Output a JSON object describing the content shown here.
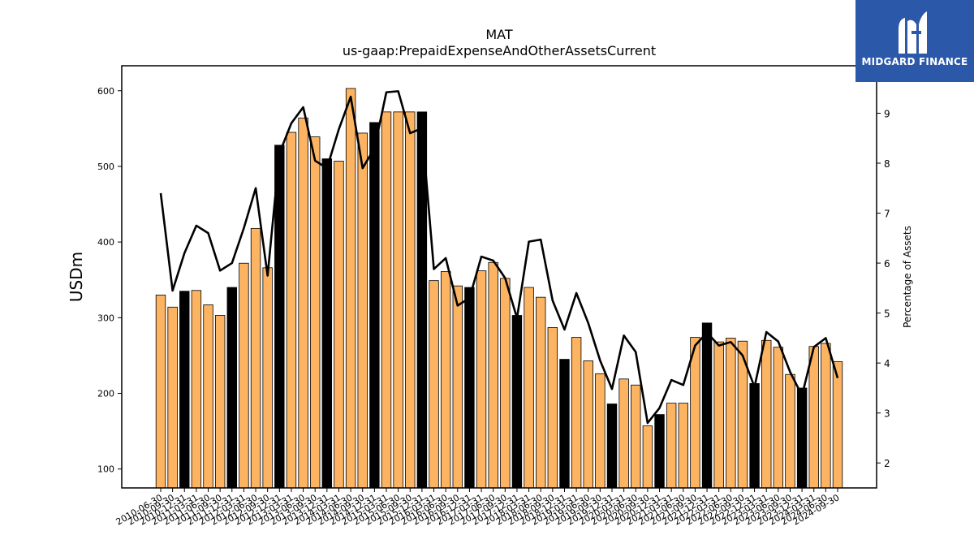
{
  "chart_data": {
    "type": "bar",
    "title": "MAT",
    "subtitle": "us-gaap:PrepaidExpenseAndOtherAssetsCurrent",
    "ylabel": "USDm",
    "y2label": "Percentage of Assets",
    "ylim": [
      75,
      633
    ],
    "y2lim": [
      1.5,
      9.95
    ],
    "yticks": [
      100,
      200,
      300,
      400,
      500,
      600
    ],
    "y2ticks": [
      2,
      3,
      4,
      5,
      6,
      7,
      8,
      9
    ],
    "bar_color": "#fdb462",
    "highlight_color": "#000000",
    "line_color": "#000000",
    "categories": [
      "2010-06-30",
      "2010-09-30",
      "2010-12-31",
      "2011-03-31",
      "2011-06-30",
      "2011-09-30",
      "2011-12-31",
      "2012-03-31",
      "2012-06-30",
      "2012-09-30",
      "2012-12-31",
      "2013-03-31",
      "2013-06-30",
      "2013-09-30",
      "2013-12-31",
      "2014-03-31",
      "2014-06-30",
      "2014-09-30",
      "2014-12-31",
      "2015-03-31",
      "2015-06-30",
      "2015-09-30",
      "2015-12-31",
      "2016-03-31",
      "2016-06-30",
      "2016-09-30",
      "2016-12-31",
      "2017-03-31",
      "2017-06-30",
      "2017-09-30",
      "2017-12-31",
      "2018-03-31",
      "2018-06-30",
      "2018-09-30",
      "2018-12-31",
      "2019-03-31",
      "2019-06-30",
      "2019-09-30",
      "2019-12-31",
      "2020-03-31",
      "2020-06-30",
      "2020-09-30",
      "2020-12-31",
      "2021-03-31",
      "2021-06-30",
      "2021-09-30",
      "2021-12-31",
      "2022-03-31",
      "2022-06-30",
      "2022-09-30",
      "2022-12-31",
      "2023-03-31",
      "2023-06-30",
      "2023-09-30",
      "2023-12-31",
      "2024-03-31",
      "2024-06-30",
      "2024-09-30"
    ],
    "series": [
      {
        "type": "bar",
        "values": [
          330,
          314,
          335,
          336,
          317,
          303,
          340,
          372,
          418,
          366,
          528,
          545,
          564,
          539,
          510,
          507,
          603,
          544,
          558,
          572,
          572,
          572,
          572,
          349,
          361,
          342,
          340,
          362,
          373,
          352,
          303,
          340,
          327,
          287,
          245,
          274,
          243,
          226,
          186,
          219,
          211,
          157,
          172,
          187,
          187,
          274,
          293,
          268,
          273,
          269,
          213,
          270,
          261,
          225,
          207,
          262,
          266,
          242
        ],
        "highlight": [
          false,
          false,
          true,
          false,
          false,
          false,
          true,
          false,
          false,
          false,
          true,
          false,
          false,
          false,
          true,
          false,
          false,
          false,
          true,
          false,
          false,
          false,
          true,
          false,
          false,
          false,
          true,
          false,
          false,
          false,
          true,
          false,
          false,
          false,
          true,
          false,
          false,
          false,
          true,
          false,
          false,
          false,
          true,
          false,
          false,
          false,
          true,
          false,
          false,
          false,
          true,
          false,
          false,
          false,
          true,
          false,
          false,
          false
        ]
      },
      {
        "type": "line",
        "axis": "right",
        "values": [
          7.4,
          5.45,
          6.2,
          6.75,
          6.6,
          5.85,
          6.0,
          6.7,
          7.5,
          5.75,
          8.2,
          8.8,
          9.12,
          8.05,
          7.9,
          8.68,
          9.33,
          7.9,
          8.3,
          9.42,
          9.44,
          8.6,
          8.7,
          5.88,
          6.1,
          5.15,
          5.3,
          6.13,
          6.05,
          5.7,
          4.9,
          6.43,
          6.47,
          5.25,
          4.67,
          5.4,
          4.8,
          4.05,
          3.48,
          4.55,
          4.22,
          2.8,
          3.1,
          3.66,
          3.56,
          4.35,
          4.61,
          4.35,
          4.42,
          4.15,
          3.52,
          4.62,
          4.43,
          3.82,
          3.35,
          4.32,
          4.5,
          3.7
        ]
      }
    ]
  },
  "logo": {
    "text": "MIDGARD FINANCE",
    "color": "#2b58a8",
    "icon": "midgard-logo-mark"
  }
}
